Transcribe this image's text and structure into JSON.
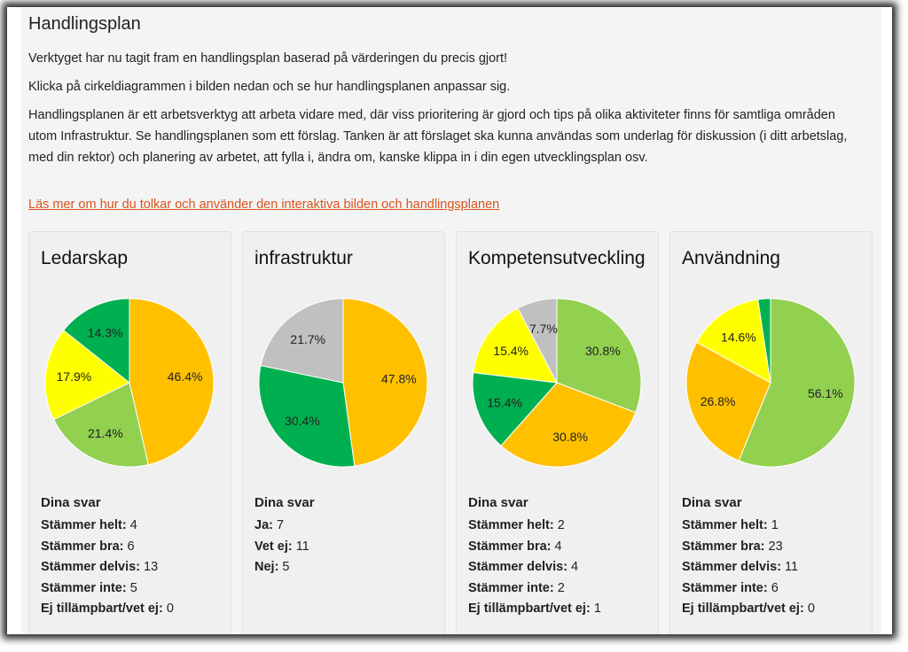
{
  "header": {
    "title": "Handlingsplan",
    "paragraphs": [
      "Verktyget har nu tagit fram en handlingsplan baserad på värderingen du precis gjort!",
      "Klicka på cirkeldiagrammen i bilden nedan och se hur handlingsplanen anpassar sig.",
      "Handlingsplanen är ett arbetsverktyg att arbeta vidare med, där viss prioritering är gjord och tips på olika aktiviteter finns för samtliga områden utom Infrastruktur. Se handlingsplanen som ett förslag. Tanken är att förslaget ska kunna användas som underlag för diskussion (i ditt arbetslag, med din rektor) och planering av arbetet, att fylla i, ändra om, kanske klippa in i din egen utvecklingsplan osv."
    ],
    "link": "Läs mer om hur du tolkar och använder den interaktiva bilden och handlingsplanen"
  },
  "colors": {
    "orange": "#FFC000",
    "lightgreen": "#92D050",
    "yellow": "#FFFF00",
    "darkgreen": "#00B050",
    "gray": "#C0C0C0",
    "link": "#D9531E"
  },
  "answers_heading": "Dina svar",
  "chart_data": [
    {
      "type": "pie",
      "title": "Ledarskap",
      "slices": [
        {
          "label": "46.4%",
          "value": 46.4,
          "color": "#FFC000"
        },
        {
          "label": "21.4%",
          "value": 21.4,
          "color": "#92D050"
        },
        {
          "label": "17.9%",
          "value": 17.9,
          "color": "#FFFF00"
        },
        {
          "label": "14.3%",
          "value": 14.3,
          "color": "#00B050"
        }
      ],
      "answers": [
        {
          "label": "Stämmer helt:",
          "value": "4"
        },
        {
          "label": "Stämmer bra:",
          "value": "6"
        },
        {
          "label": "Stämmer delvis:",
          "value": "13"
        },
        {
          "label": "Stämmer inte:",
          "value": "5"
        },
        {
          "label": "Ej tillämpbart/vet ej:",
          "value": "0"
        }
      ]
    },
    {
      "type": "pie",
      "title": "infrastruktur",
      "slices": [
        {
          "label": "47.8%",
          "value": 47.8,
          "color": "#FFC000"
        },
        {
          "label": "30.4%",
          "value": 30.4,
          "color": "#00B050"
        },
        {
          "label": "21.7%",
          "value": 21.7,
          "color": "#C0C0C0"
        }
      ],
      "answers": [
        {
          "label": "Ja:",
          "value": "7"
        },
        {
          "label": "Vet ej:",
          "value": "11"
        },
        {
          "label": "Nej:",
          "value": "5"
        }
      ]
    },
    {
      "type": "pie",
      "title": "Kompetensutveckling",
      "slices": [
        {
          "label": "30.8%",
          "value": 30.8,
          "color": "#92D050"
        },
        {
          "label": "30.8%",
          "value": 30.8,
          "color": "#FFC000"
        },
        {
          "label": "15.4%",
          "value": 15.4,
          "color": "#00B050"
        },
        {
          "label": "15.4%",
          "value": 15.4,
          "color": "#FFFF00"
        },
        {
          "label": "7.7%",
          "value": 7.7,
          "color": "#C0C0C0"
        }
      ],
      "answers": [
        {
          "label": "Stämmer helt:",
          "value": "2"
        },
        {
          "label": "Stämmer bra:",
          "value": "4"
        },
        {
          "label": "Stämmer delvis:",
          "value": "4"
        },
        {
          "label": "Stämmer inte:",
          "value": "2"
        },
        {
          "label": "Ej tillämpbart/vet ej:",
          "value": "1"
        }
      ]
    },
    {
      "type": "pie",
      "title": "Användning",
      "slices": [
        {
          "label": "56.1%",
          "value": 56.1,
          "color": "#92D050"
        },
        {
          "label": "26.8%",
          "value": 26.8,
          "color": "#FFC000"
        },
        {
          "label": "14.6%",
          "value": 14.6,
          "color": "#FFFF00"
        },
        {
          "label": "",
          "value": 2.4,
          "color": "#00B050"
        }
      ],
      "answers": [
        {
          "label": "Stämmer helt:",
          "value": "1"
        },
        {
          "label": "Stämmer bra:",
          "value": "23"
        },
        {
          "label": "Stämmer delvis:",
          "value": "11"
        },
        {
          "label": "Stämmer inte:",
          "value": "6"
        },
        {
          "label": "Ej tillämpbart/vet ej:",
          "value": "0"
        }
      ]
    }
  ]
}
